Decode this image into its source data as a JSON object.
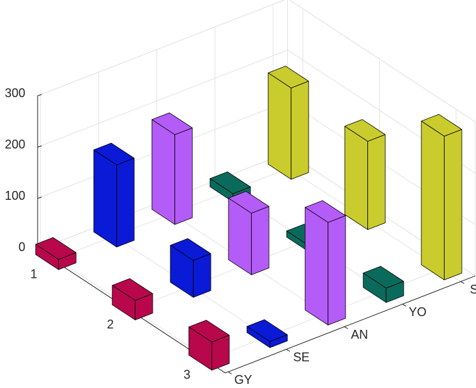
{
  "chart_data": {
    "type": "bar3d",
    "categories": [
      1,
      2,
      3
    ],
    "series": [
      {
        "name": "GY",
        "color": "#b8084b",
        "values": [
          20,
          38,
          55
        ]
      },
      {
        "name": "SE",
        "color": "#0a1ad6",
        "values": [
          160,
          72,
          12
        ]
      },
      {
        "name": "AN",
        "color": "#b45cf7",
        "values": [
          175,
          120,
          200
        ]
      },
      {
        "name": "YO",
        "color": "#0a6b5c",
        "values": [
          16,
          12,
          28
        ]
      },
      {
        "name": "SI",
        "color": "#c9cc2c",
        "values": [
          178,
          172,
          280
        ]
      }
    ],
    "zlim": [
      0,
      300
    ],
    "zticks": [
      0,
      100,
      200,
      300
    ],
    "grid": true
  }
}
